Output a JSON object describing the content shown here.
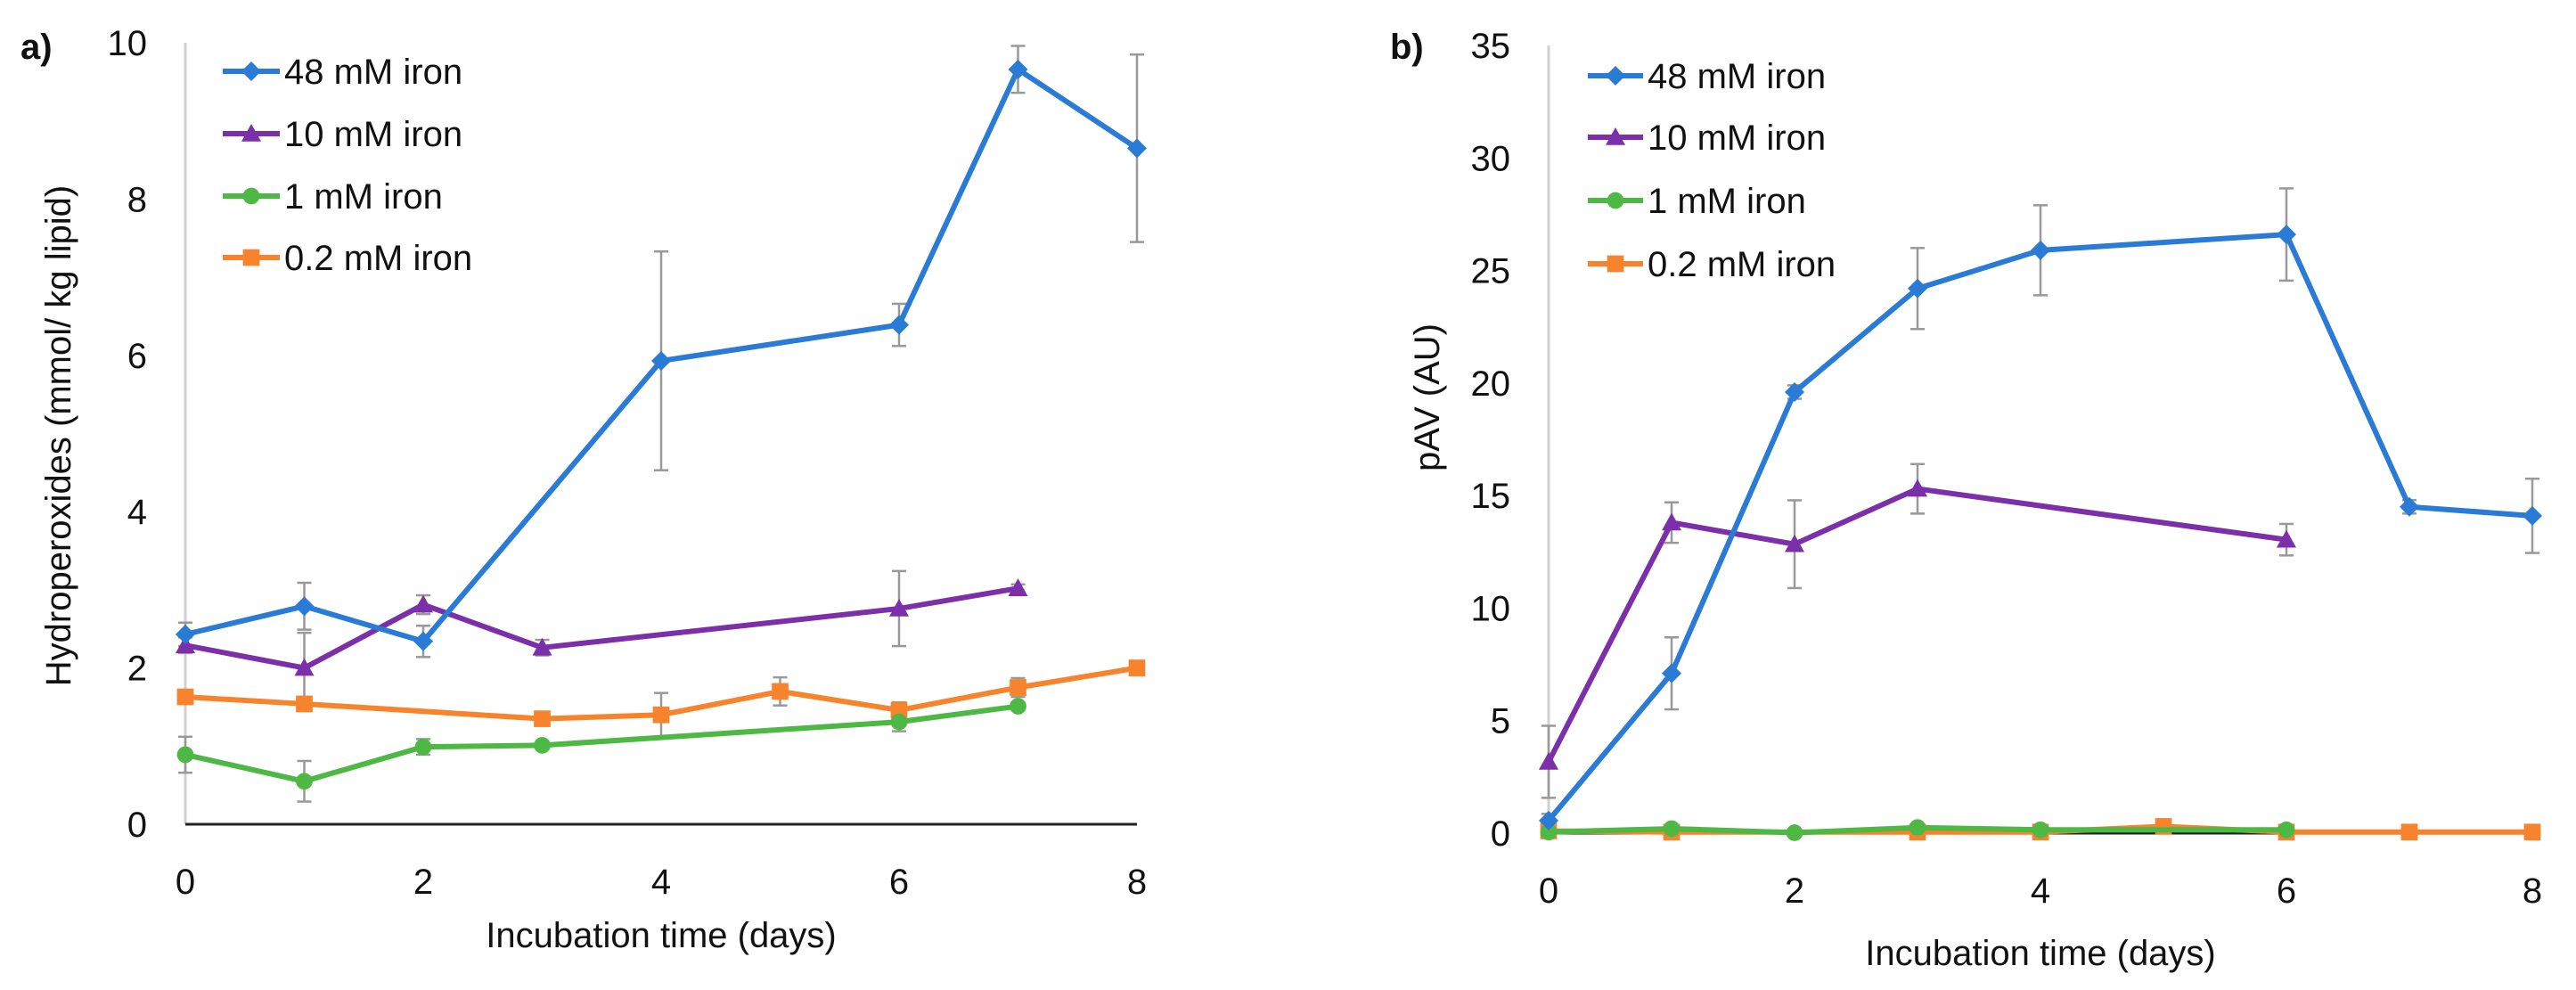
{
  "chart_data": [
    {
      "panel_label": "a)",
      "type": "line",
      "xlabel": "Incubation time (days)",
      "ylabel": "Hydroperoxides (mmol/ kg lipid)",
      "xlim": [
        0,
        8
      ],
      "ylim": [
        0,
        10
      ],
      "xticks": [
        0,
        2,
        4,
        6,
        8
      ],
      "yticks": [
        0,
        2,
        4,
        6,
        8,
        10
      ],
      "grid": false,
      "legend_position": "top-left",
      "series": [
        {
          "name": "48 mM iron",
          "color": "#2a7bd6",
          "marker": "diamond",
          "x": [
            0,
            1,
            2,
            4,
            6,
            7,
            8
          ],
          "y": [
            2.43,
            2.79,
            2.34,
            5.93,
            6.39,
            9.66,
            8.65
          ],
          "err": [
            0.15,
            0.3,
            0.2,
            1.4,
            0.27,
            0.3,
            1.2
          ]
        },
        {
          "name": "10 mM iron",
          "color": "#7b2fa8",
          "marker": "triangle",
          "x": [
            0,
            1,
            2,
            3,
            6,
            7
          ],
          "y": [
            2.29,
            2.0,
            2.81,
            2.26,
            2.76,
            3.02
          ],
          "err": [
            0.1,
            0.45,
            0.12,
            0.1,
            0.48,
            0.05
          ]
        },
        {
          "name": "1 mM iron",
          "color": "#4db843",
          "marker": "circle",
          "x": [
            0,
            1,
            2,
            3,
            6,
            7
          ],
          "y": [
            0.89,
            0.55,
            0.99,
            1.01,
            1.31,
            1.51
          ],
          "err": [
            0.23,
            0.26,
            0.1,
            0.05,
            0.12,
            0.05
          ]
        },
        {
          "name": "0.2  mM iron",
          "color": "#f7842c",
          "marker": "square",
          "x": [
            0,
            1,
            3,
            4,
            5,
            6,
            7,
            8
          ],
          "y": [
            1.63,
            1.54,
            1.35,
            1.4,
            1.7,
            1.46,
            1.75,
            2.0
          ],
          "err": [
            0.05,
            0.05,
            0.05,
            0.28,
            0.18,
            0.1,
            0.12,
            0.03
          ]
        }
      ]
    },
    {
      "panel_label": "b)",
      "type": "line",
      "xlabel": "Incubation time (days)",
      "ylabel": "pAV  (AU)",
      "xlim": [
        0,
        8
      ],
      "ylim": [
        0,
        35
      ],
      "xticks": [
        0,
        2,
        4,
        6,
        8
      ],
      "yticks": [
        0,
        5,
        10,
        15,
        20,
        25,
        30,
        35
      ],
      "grid": false,
      "legend_position": "top-left",
      "series": [
        {
          "name": "48 mM iron",
          "color": "#2a7bd6",
          "marker": "diamond",
          "x": [
            0,
            1,
            2,
            3,
            4,
            6,
            7,
            8
          ],
          "y": [
            0.56,
            7.1,
            19.6,
            24.2,
            25.9,
            26.6,
            14.5,
            14.1
          ],
          "err": [
            0.3,
            1.6,
            0.3,
            1.8,
            2.0,
            2.05,
            0.3,
            1.65
          ]
        },
        {
          "name": "10 mM iron",
          "color": "#7b2fa8",
          "marker": "triangle",
          "x": [
            0,
            1,
            2,
            3,
            6
          ],
          "y": [
            3.17,
            13.8,
            12.84,
            15.3,
            13.04
          ],
          "err": [
            1.6,
            0.9,
            1.95,
            1.1,
            0.7
          ]
        },
        {
          "name": "1 mM iron",
          "color": "#4db843",
          "marker": "circle",
          "x": [
            0,
            1,
            2,
            3,
            4,
            6
          ],
          "y": [
            0.05,
            0.2,
            0.02,
            0.25,
            0.15,
            0.15
          ],
          "err": [
            0,
            0,
            0,
            0,
            0,
            0
          ]
        },
        {
          "name": "0.2 mM iron",
          "color": "#f7842c",
          "marker": "square",
          "x": [
            0,
            1,
            3,
            4,
            5,
            6,
            7,
            8
          ],
          "y": [
            0.1,
            0.05,
            0.05,
            0.05,
            0.3,
            0.05,
            0.05,
            0.05
          ],
          "err": [
            0,
            0,
            0,
            0,
            0,
            0,
            0,
            0
          ]
        }
      ]
    }
  ]
}
